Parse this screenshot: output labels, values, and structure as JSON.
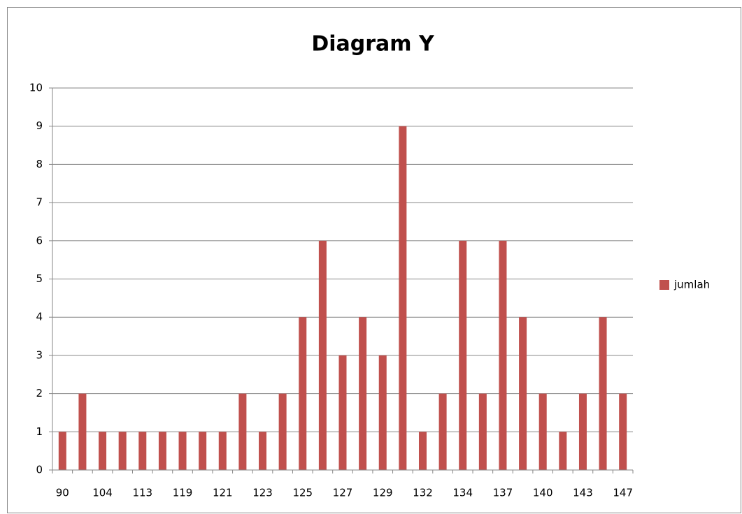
{
  "chart_data": {
    "type": "bar",
    "title": "Diagram Y",
    "categories": [
      "90",
      null,
      "104",
      null,
      "113",
      null,
      "119",
      null,
      "121",
      null,
      "123",
      null,
      "125",
      null,
      "127",
      null,
      "129",
      null,
      "132",
      null,
      "134",
      null,
      "137",
      null,
      "140",
      null,
      "143",
      null,
      "147"
    ],
    "series": [
      {
        "name": "jumlah",
        "color": "#c0504d",
        "values": [
          1,
          2,
          1,
          1,
          1,
          1,
          1,
          1,
          1,
          2,
          1,
          2,
          4,
          6,
          3,
          4,
          3,
          9,
          1,
          2,
          6,
          2,
          6,
          4,
          2,
          1,
          2,
          4,
          2
        ]
      }
    ],
    "ylim": [
      0,
      10
    ],
    "yticks": [
      0,
      1,
      2,
      3,
      4,
      5,
      6,
      7,
      8,
      9,
      10
    ],
    "grid": true,
    "legend": "right"
  }
}
